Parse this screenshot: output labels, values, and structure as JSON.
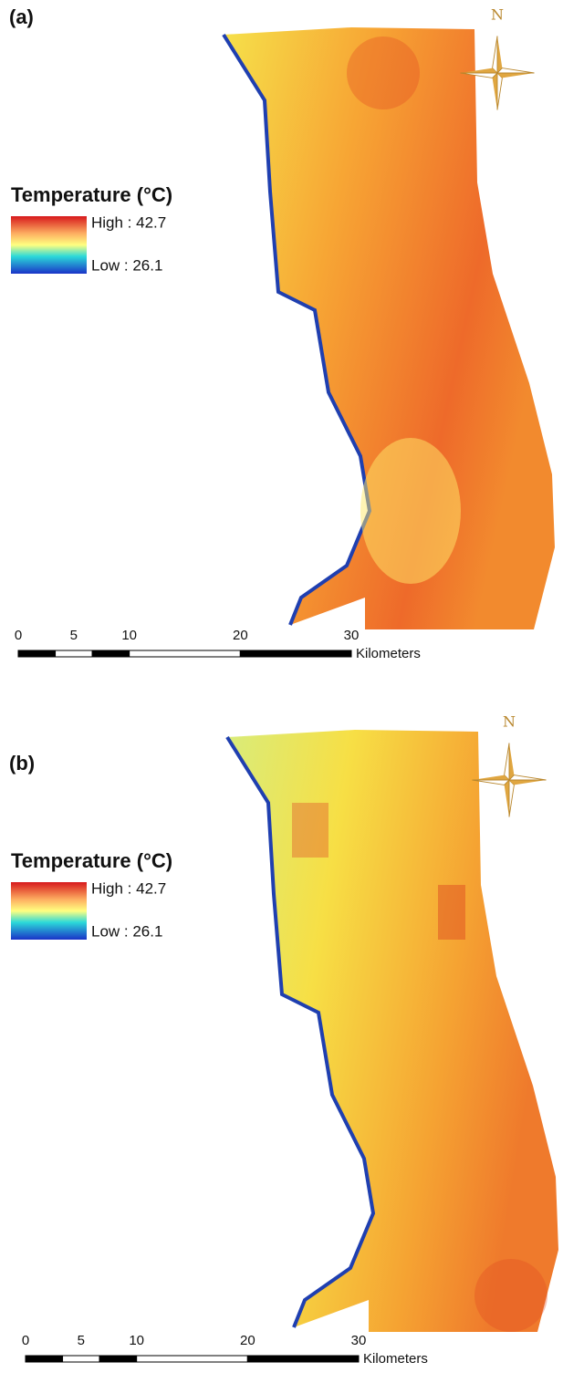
{
  "panels": [
    {
      "label": "(a)",
      "north": "N",
      "legend": {
        "title": "Temperature (°C)",
        "high": "High : 42.7",
        "low": "Low : 26.1"
      },
      "scale": {
        "ticks": [
          0,
          5,
          10,
          20,
          30
        ],
        "unit": "Kilometers"
      }
    },
    {
      "label": "(b)",
      "north": "N",
      "legend": {
        "title": "Temperature (°C)",
        "high": "High : 42.7",
        "low": "Low : 26.1"
      },
      "scale": {
        "ticks": [
          0,
          5,
          10,
          20,
          30
        ],
        "unit": "Kilometers"
      }
    }
  ]
}
